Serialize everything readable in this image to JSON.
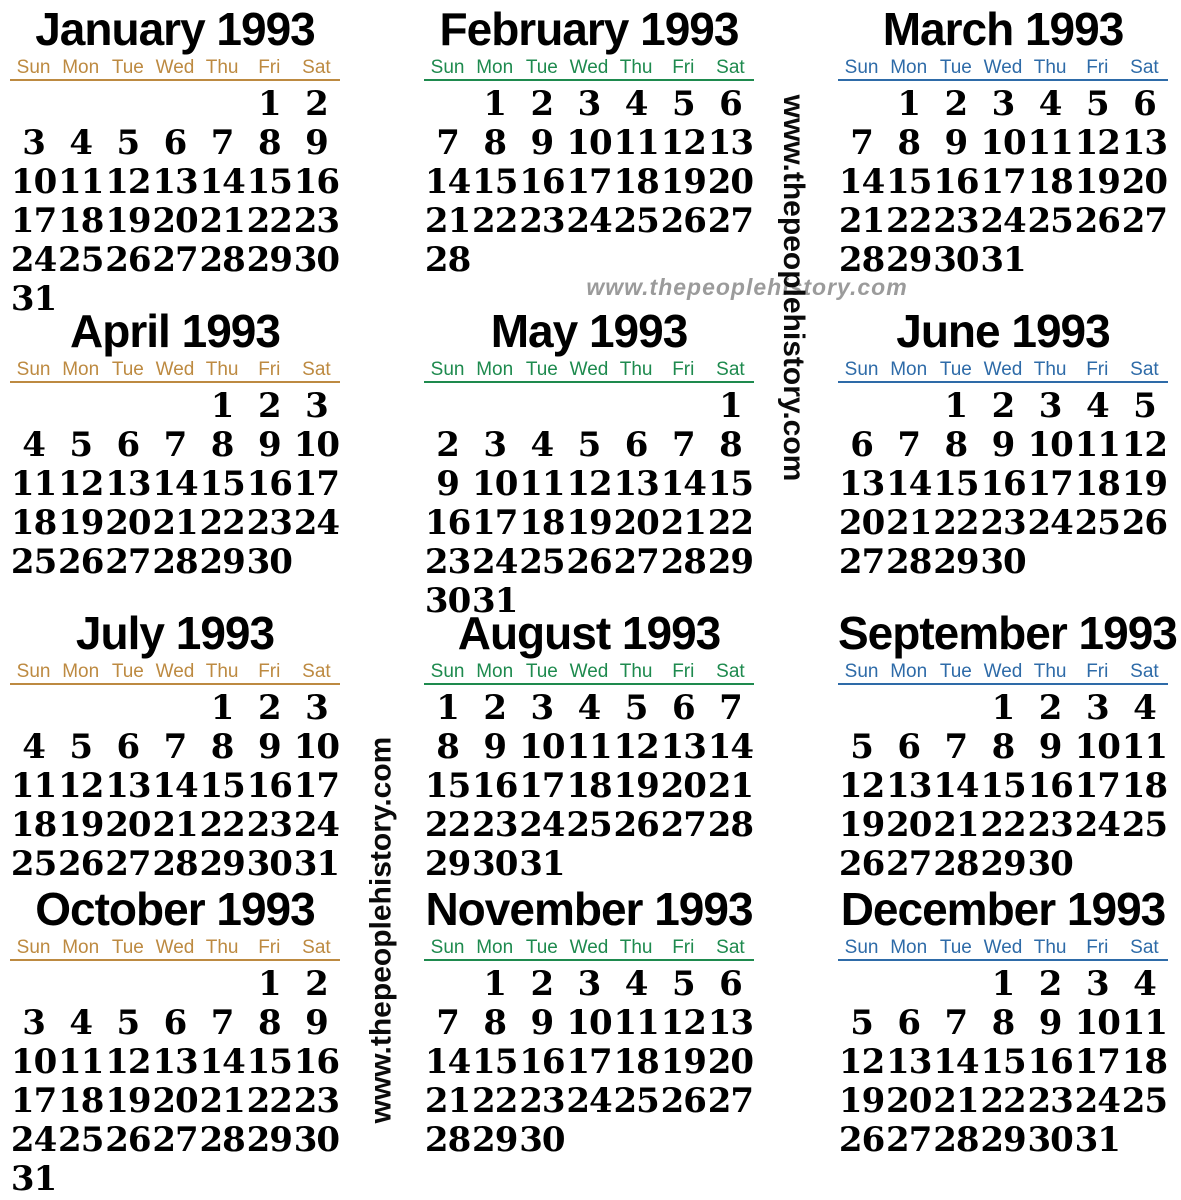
{
  "year": "1993",
  "weekday_labels": [
    "Sun",
    "Mon",
    "Tue",
    "Wed",
    "Thu",
    "Fri",
    "Sat"
  ],
  "accent_colors": {
    "orange": "#bd8a41",
    "green": "#1e8a4e",
    "blue": "#2e6ba8"
  },
  "watermarks": {
    "horizontal_gray": "www.thepeoplehistory.com",
    "vertical_right": "www.thepeoplehistory.com",
    "vertical_left": "www.thepeoplehistory.com"
  },
  "months": [
    {
      "title": "January 1993",
      "accent": "orange",
      "weeks": [
        [
          "",
          "",
          "",
          "",
          "",
          "1",
          "2"
        ],
        [
          "3",
          "4",
          "5",
          "6",
          "7",
          "8",
          "9"
        ],
        [
          "10",
          "11",
          "12",
          "13",
          "14",
          "15",
          "16"
        ],
        [
          "17",
          "18",
          "19",
          "20",
          "21",
          "22",
          "23"
        ],
        [
          "24",
          "25",
          "26",
          "27",
          "28",
          "29",
          "30"
        ],
        [
          "31",
          "",
          "",
          "",
          "",
          "",
          ""
        ]
      ]
    },
    {
      "title": "February 1993",
      "accent": "green",
      "weeks": [
        [
          "",
          "1",
          "2",
          "3",
          "4",
          "5",
          "6"
        ],
        [
          "7",
          "8",
          "9",
          "10",
          "11",
          "12",
          "13"
        ],
        [
          "14",
          "15",
          "16",
          "17",
          "18",
          "19",
          "20"
        ],
        [
          "21",
          "22",
          "23",
          "24",
          "25",
          "26",
          "27"
        ],
        [
          "28",
          "",
          "",
          "",
          "",
          "",
          ""
        ]
      ]
    },
    {
      "title": "March 1993",
      "accent": "blue",
      "weeks": [
        [
          "",
          "1",
          "2",
          "3",
          "4",
          "5",
          "6"
        ],
        [
          "7",
          "8",
          "9",
          "10",
          "11",
          "12",
          "13"
        ],
        [
          "14",
          "15",
          "16",
          "17",
          "18",
          "19",
          "20"
        ],
        [
          "21",
          "22",
          "23",
          "24",
          "25",
          "26",
          "27"
        ],
        [
          "28",
          "29",
          "30",
          "31",
          "",
          "",
          ""
        ]
      ]
    },
    {
      "title": "April 1993",
      "accent": "orange",
      "weeks": [
        [
          "",
          "",
          "",
          "",
          "1",
          "2",
          "3"
        ],
        [
          "4",
          "5",
          "6",
          "7",
          "8",
          "9",
          "10"
        ],
        [
          "11",
          "12",
          "13",
          "14",
          "15",
          "16",
          "17"
        ],
        [
          "18",
          "19",
          "20",
          "21",
          "22",
          "23",
          "24"
        ],
        [
          "25",
          "26",
          "27",
          "28",
          "29",
          "30",
          ""
        ]
      ]
    },
    {
      "title": "May 1993",
      "accent": "green",
      "weeks": [
        [
          "",
          "",
          "",
          "",
          "",
          "",
          "1"
        ],
        [
          "2",
          "3",
          "4",
          "5",
          "6",
          "7",
          "8"
        ],
        [
          "9",
          "10",
          "11",
          "12",
          "13",
          "14",
          "15"
        ],
        [
          "16",
          "17",
          "18",
          "19",
          "20",
          "21",
          "22"
        ],
        [
          "23",
          "24",
          "25",
          "26",
          "27",
          "28",
          "29"
        ],
        [
          "30",
          "31",
          "",
          "",
          "",
          "",
          ""
        ]
      ]
    },
    {
      "title": "June 1993",
      "accent": "blue",
      "weeks": [
        [
          "",
          "",
          "1",
          "2",
          "3",
          "4",
          "5"
        ],
        [
          "6",
          "7",
          "8",
          "9",
          "10",
          "11",
          "12"
        ],
        [
          "13",
          "14",
          "15",
          "16",
          "17",
          "18",
          "19"
        ],
        [
          "20",
          "21",
          "22",
          "23",
          "24",
          "25",
          "26"
        ],
        [
          "27",
          "28",
          "29",
          "30",
          "",
          "",
          ""
        ]
      ]
    },
    {
      "title": "July 1993",
      "accent": "orange",
      "weeks": [
        [
          "",
          "",
          "",
          "",
          "1",
          "2",
          "3"
        ],
        [
          "4",
          "5",
          "6",
          "7",
          "8",
          "9",
          "10"
        ],
        [
          "11",
          "12",
          "13",
          "14",
          "15",
          "16",
          "17"
        ],
        [
          "18",
          "19",
          "20",
          "21",
          "22",
          "23",
          "24"
        ],
        [
          "25",
          "26",
          "27",
          "28",
          "29",
          "30",
          "31"
        ]
      ]
    },
    {
      "title": "August 1993",
      "accent": "green",
      "weeks": [
        [
          "1",
          "2",
          "3",
          "4",
          "5",
          "6",
          "7"
        ],
        [
          "8",
          "9",
          "10",
          "11",
          "12",
          "13",
          "14"
        ],
        [
          "15",
          "16",
          "17",
          "18",
          "19",
          "20",
          "21"
        ],
        [
          "22",
          "23",
          "24",
          "25",
          "26",
          "27",
          "28"
        ],
        [
          "29",
          "30",
          "31",
          "",
          "",
          "",
          ""
        ]
      ]
    },
    {
      "title": "September 1993",
      "accent": "blue",
      "weeks": [
        [
          "",
          "",
          "",
          "1",
          "2",
          "3",
          "4"
        ],
        [
          "5",
          "6",
          "7",
          "8",
          "9",
          "10",
          "11"
        ],
        [
          "12",
          "13",
          "14",
          "15",
          "16",
          "17",
          "18"
        ],
        [
          "19",
          "20",
          "21",
          "22",
          "23",
          "24",
          "25"
        ],
        [
          "26",
          "27",
          "28",
          "29",
          "30",
          "",
          ""
        ]
      ]
    },
    {
      "title": "October 1993",
      "accent": "orange",
      "weeks": [
        [
          "",
          "",
          "",
          "",
          "",
          "1",
          "2"
        ],
        [
          "3",
          "4",
          "5",
          "6",
          "7",
          "8",
          "9"
        ],
        [
          "10",
          "11",
          "12",
          "13",
          "14",
          "15",
          "16"
        ],
        [
          "17",
          "18",
          "19",
          "20",
          "21",
          "22",
          "23"
        ],
        [
          "24",
          "25",
          "26",
          "27",
          "28",
          "29",
          "30"
        ],
        [
          "31",
          "",
          "",
          "",
          "",
          "",
          ""
        ]
      ]
    },
    {
      "title": "November 1993",
      "accent": "green",
      "weeks": [
        [
          "",
          "1",
          "2",
          "3",
          "4",
          "5",
          "6"
        ],
        [
          "7",
          "8",
          "9",
          "10",
          "11",
          "12",
          "13"
        ],
        [
          "14",
          "15",
          "16",
          "17",
          "18",
          "19",
          "20"
        ],
        [
          "21",
          "22",
          "23",
          "24",
          "25",
          "26",
          "27"
        ],
        [
          "28",
          "29",
          "30",
          "",
          "",
          "",
          ""
        ]
      ]
    },
    {
      "title": "December 1993",
      "accent": "blue",
      "weeks": [
        [
          "",
          "",
          "",
          "1",
          "2",
          "3",
          "4"
        ],
        [
          "5",
          "6",
          "7",
          "8",
          "9",
          "10",
          "11"
        ],
        [
          "12",
          "13",
          "14",
          "15",
          "16",
          "17",
          "18"
        ],
        [
          "19",
          "20",
          "21",
          "22",
          "23",
          "24",
          "25"
        ],
        [
          "26",
          "27",
          "28",
          "29",
          "30",
          "31",
          ""
        ]
      ]
    }
  ]
}
